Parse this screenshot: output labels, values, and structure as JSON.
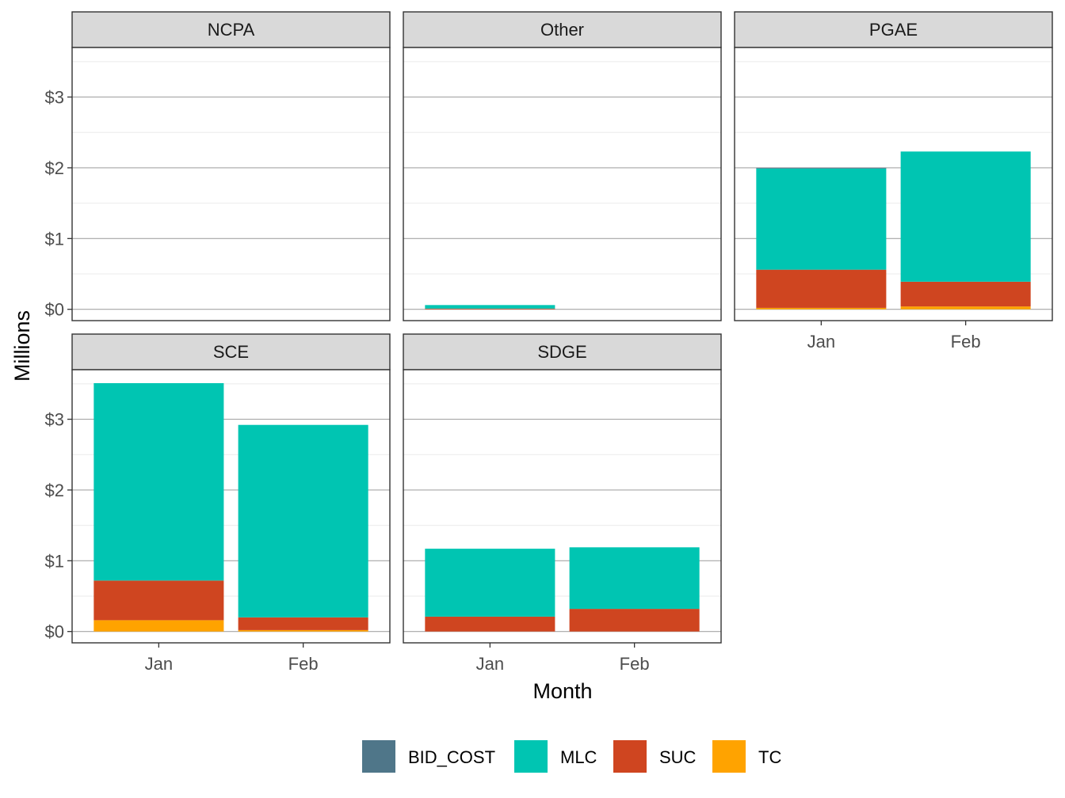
{
  "chart_data": {
    "type": "bar",
    "stacked": true,
    "facet_layout": "3 columns, free x, shared y",
    "xlabel": "Month",
    "ylabel": "Millions",
    "y_ticks": [
      {
        "value": 0,
        "label": "$0"
      },
      {
        "value": 1,
        "label": "$1"
      },
      {
        "value": 2,
        "label": "$2"
      },
      {
        "value": 3,
        "label": "$3"
      }
    ],
    "ylim": [
      -0.16,
      3.7
    ],
    "grid": true,
    "legend_position": "bottom",
    "stack_order": [
      "TC",
      "SUC",
      "MLC",
      "BID_COST"
    ],
    "legend": [
      {
        "name": "BID_COST",
        "color": "#4F7689"
      },
      {
        "name": "MLC",
        "color": "#00C5B2"
      },
      {
        "name": "SUC",
        "color": "#CF4520"
      },
      {
        "name": "TC",
        "color": "#FFA300"
      }
    ],
    "panels": [
      {
        "name": "NCPA",
        "categories": [
          "Jan",
          "Feb"
        ],
        "show_x_axis": false,
        "values": {
          "BID_COST": [
            0,
            0
          ],
          "MLC": [
            0,
            0
          ],
          "SUC": [
            0,
            0
          ],
          "TC": [
            0,
            0
          ]
        }
      },
      {
        "name": "Other",
        "categories": [
          "Jan",
          "Feb"
        ],
        "show_x_axis": false,
        "values": {
          "BID_COST": [
            0,
            0
          ],
          "MLC": [
            0.05,
            0
          ],
          "SUC": [
            0.01,
            0
          ],
          "TC": [
            0,
            0
          ]
        }
      },
      {
        "name": "PGAE",
        "categories": [
          "Jan",
          "Feb"
        ],
        "show_x_axis": true,
        "values": {
          "BID_COST": [
            0.01,
            0
          ],
          "MLC": [
            1.43,
            1.84
          ],
          "SUC": [
            0.54,
            0.35
          ],
          "TC": [
            0.02,
            0.04
          ]
        }
      },
      {
        "name": "SCE",
        "categories": [
          "Jan",
          "Feb"
        ],
        "show_x_axis": true,
        "values": {
          "BID_COST": [
            0,
            0
          ],
          "MLC": [
            2.79,
            2.72
          ],
          "SUC": [
            0.56,
            0.18
          ],
          "TC": [
            0.16,
            0.02
          ]
        }
      },
      {
        "name": "SDGE",
        "categories": [
          "Jan",
          "Feb"
        ],
        "show_x_axis": true,
        "values": {
          "BID_COST": [
            0,
            0
          ],
          "MLC": [
            0.96,
            0.87
          ],
          "SUC": [
            0.21,
            0.32
          ],
          "TC": [
            0,
            0
          ]
        }
      }
    ]
  }
}
